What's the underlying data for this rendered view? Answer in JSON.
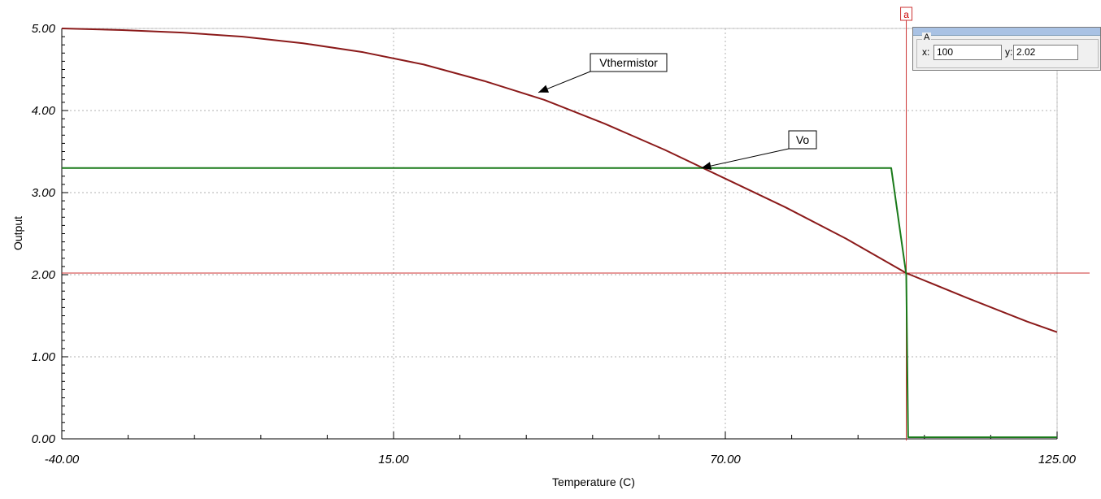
{
  "chart_data": {
    "type": "line",
    "xlabel": "Temperature (C)",
    "ylabel": "Output",
    "xlim": [
      -40,
      125
    ],
    "ylim": [
      0,
      5
    ],
    "x_tick_labels": [
      "-40.00",
      "15.00",
      "70.00",
      "125.00"
    ],
    "x_tick_values": [
      -40,
      15,
      70,
      125
    ],
    "y_tick_labels": [
      "0.00",
      "1.00",
      "2.00",
      "3.00",
      "4.00",
      "5.00"
    ],
    "y_tick_values": [
      0,
      1,
      2,
      3,
      4,
      5
    ],
    "grid": true,
    "series": [
      {
        "name": "Vthermistor",
        "color": "#8b1a1a",
        "x": [
          -40,
          -30,
          -20,
          -10,
          0,
          10,
          20,
          30,
          40,
          50,
          60,
          70,
          80,
          90,
          100,
          110,
          120,
          125
        ],
        "y": [
          5.0,
          4.98,
          4.95,
          4.9,
          4.82,
          4.71,
          4.56,
          4.36,
          4.13,
          3.84,
          3.52,
          3.17,
          2.82,
          2.44,
          2.02,
          1.72,
          1.43,
          1.3
        ]
      },
      {
        "name": "Vo",
        "color": "#1a7a1a",
        "x": [
          -40,
          97.5,
          100,
          100.3,
          125
        ],
        "y": [
          3.3,
          3.3,
          2.0,
          0.02,
          0.02
        ]
      }
    ],
    "annotations": [
      {
        "text": "Vthermistor",
        "series": "Vthermistor",
        "x": 39,
        "y": 4.22
      },
      {
        "text": "Vo",
        "series": "Vo",
        "x": 66,
        "y": 3.3
      }
    ],
    "cursor": {
      "label": "a",
      "x": 100,
      "y": 2.02,
      "color": "#cc3333"
    }
  },
  "readout": {
    "group": "A",
    "x_label": "x:",
    "x_value": "100",
    "y_label": "y:",
    "y_value": "2.02"
  }
}
